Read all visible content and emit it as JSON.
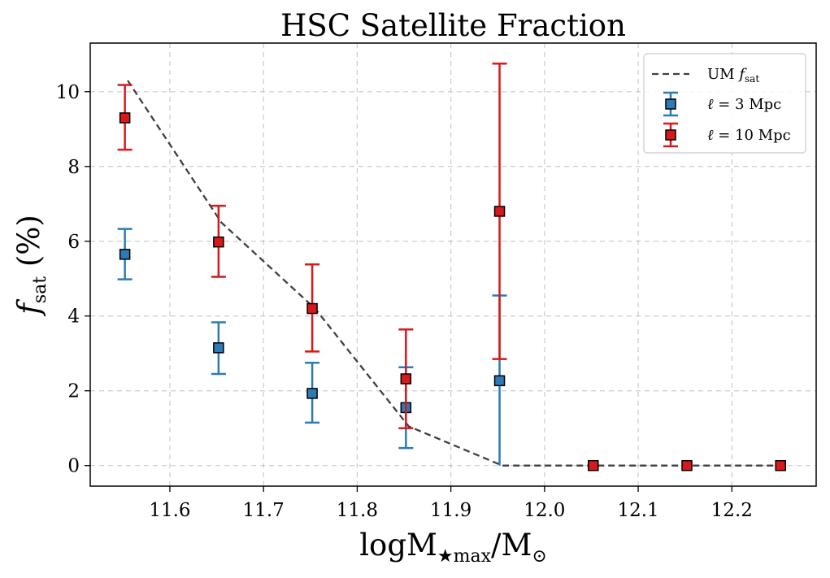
{
  "chart_data": {
    "type": "scatter",
    "title": "HSC Satellite Fraction",
    "xlabel": {
      "main": "logM",
      "sub": "★max",
      "tail": "/M",
      "sun_sub": "⊙"
    },
    "ylabel": {
      "main": "f",
      "sub": "sat",
      "tail": " (%)"
    },
    "xlim": [
      11.515,
      12.29
    ],
    "ylim": [
      -0.55,
      11.3
    ],
    "x_ticks": [
      11.6,
      11.7,
      11.8,
      11.9,
      12.0,
      12.1,
      12.2
    ],
    "x_tick_labels": [
      "11.6",
      "11.7",
      "11.8",
      "11.9",
      "12.0",
      "12.1",
      "12.2"
    ],
    "y_ticks": [
      0,
      2,
      4,
      6,
      8,
      10
    ],
    "y_tick_labels": [
      "0",
      "2",
      "4",
      "6",
      "8",
      "10"
    ],
    "grid": true,
    "legend_position": "top-right",
    "series": [
      {
        "name": "UM",
        "name_math": "f",
        "name_sub": "sat",
        "kind": "line",
        "color": "#404040",
        "x": [
          11.555,
          11.655,
          11.755,
          11.855,
          11.955,
          12.055,
          12.155,
          12.255
        ],
        "y": [
          10.3,
          6.5,
          4.2,
          1.05,
          0.0,
          0.0,
          0.0,
          0.0
        ]
      },
      {
        "name_math": "ℓ",
        "name": " = 3 Mpc",
        "kind": "errorbar",
        "color": "#2c7bb6",
        "x": [
          11.552,
          11.652,
          11.752,
          11.852,
          11.952
        ],
        "y": [
          5.65,
          3.15,
          1.93,
          1.55,
          2.27
        ],
        "yerr_low": [
          0.67,
          0.7,
          0.78,
          1.08,
          2.27
        ],
        "yerr_high": [
          0.68,
          0.68,
          0.82,
          1.08,
          2.28
        ]
      },
      {
        "name_math": "ℓ",
        "name": " = 10 Mpc",
        "kind": "errorbar",
        "color": "#d7191c",
        "x": [
          11.552,
          11.652,
          11.752,
          11.852,
          11.952,
          12.052,
          12.152,
          12.252
        ],
        "y": [
          9.3,
          5.98,
          4.2,
          2.32,
          6.8,
          0.0,
          0.0,
          0.0
        ],
        "yerr_low": [
          0.85,
          0.93,
          1.15,
          1.32,
          3.95,
          0.0,
          0.0,
          0.0
        ],
        "yerr_high": [
          0.88,
          0.97,
          1.18,
          1.32,
          3.95,
          0.0,
          0.0,
          0.0
        ]
      }
    ]
  }
}
